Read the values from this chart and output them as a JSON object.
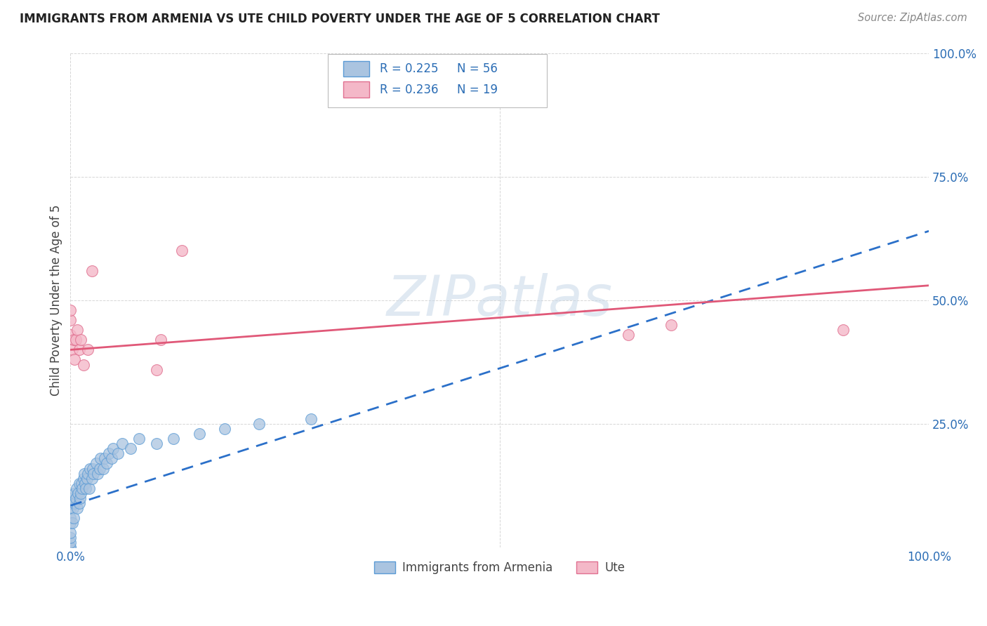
{
  "title": "IMMIGRANTS FROM ARMENIA VS UTE CHILD POVERTY UNDER THE AGE OF 5 CORRELATION CHART",
  "source": "Source: ZipAtlas.com",
  "ylabel": "Child Poverty Under the Age of 5",
  "xlim": [
    0.0,
    1.0
  ],
  "ylim": [
    0.0,
    1.0
  ],
  "grid_color": "#cccccc",
  "background_color": "#ffffff",
  "armenia_R": 0.225,
  "armenia_N": 56,
  "ute_R": 0.236,
  "ute_N": 19,
  "armenia_color": "#aac4e0",
  "armenia_edge_color": "#5b9bd5",
  "armenia_line_color": "#2b70c9",
  "ute_color": "#f4b8c8",
  "ute_edge_color": "#e07090",
  "ute_line_color": "#e05878",
  "armenia_x": [
    0.0,
    0.0,
    0.0,
    0.0,
    0.0,
    0.0,
    0.0,
    0.0,
    0.0,
    0.0,
    0.002,
    0.003,
    0.004,
    0.005,
    0.005,
    0.006,
    0.007,
    0.008,
    0.009,
    0.01,
    0.01,
    0.011,
    0.012,
    0.013,
    0.014,
    0.015,
    0.016,
    0.017,
    0.018,
    0.019,
    0.02,
    0.022,
    0.023,
    0.025,
    0.026,
    0.027,
    0.03,
    0.032,
    0.034,
    0.035,
    0.038,
    0.04,
    0.042,
    0.045,
    0.048,
    0.05,
    0.055,
    0.06,
    0.07,
    0.08,
    0.1,
    0.12,
    0.15,
    0.18,
    0.22,
    0.28
  ],
  "armenia_y": [
    0.0,
    0.0,
    0.01,
    0.02,
    0.03,
    0.05,
    0.06,
    0.08,
    0.09,
    0.1,
    0.05,
    0.08,
    0.06,
    0.09,
    0.11,
    0.1,
    0.12,
    0.08,
    0.11,
    0.09,
    0.13,
    0.1,
    0.11,
    0.13,
    0.12,
    0.14,
    0.15,
    0.13,
    0.12,
    0.14,
    0.15,
    0.12,
    0.16,
    0.14,
    0.16,
    0.15,
    0.17,
    0.15,
    0.16,
    0.18,
    0.16,
    0.18,
    0.17,
    0.19,
    0.18,
    0.2,
    0.19,
    0.21,
    0.2,
    0.22,
    0.21,
    0.22,
    0.23,
    0.24,
    0.25,
    0.26
  ],
  "ute_x": [
    0.0,
    0.0,
    0.0,
    0.002,
    0.004,
    0.005,
    0.006,
    0.008,
    0.01,
    0.012,
    0.015,
    0.02,
    0.025,
    0.1,
    0.105,
    0.13,
    0.65,
    0.7,
    0.9
  ],
  "ute_y": [
    0.43,
    0.46,
    0.48,
    0.4,
    0.42,
    0.38,
    0.42,
    0.44,
    0.4,
    0.42,
    0.37,
    0.4,
    0.56,
    0.36,
    0.42,
    0.6,
    0.43,
    0.45,
    0.44
  ],
  "legend_label_armenia": "Immigrants from Armenia",
  "legend_label_ute": "Ute",
  "title_color": "#222222",
  "axis_label_color": "#444444",
  "stat_color": "#2b6db5",
  "watermark_color": "#c8d8e8",
  "ute_trendline_start_x": 0.0,
  "ute_trendline_start_y": 0.4,
  "ute_trendline_end_x": 1.0,
  "ute_trendline_end_y": 0.53,
  "armenia_trendline_start_x": 0.0,
  "armenia_trendline_start_y": 0.085,
  "armenia_trendline_end_x": 1.0,
  "armenia_trendline_end_y": 0.64
}
